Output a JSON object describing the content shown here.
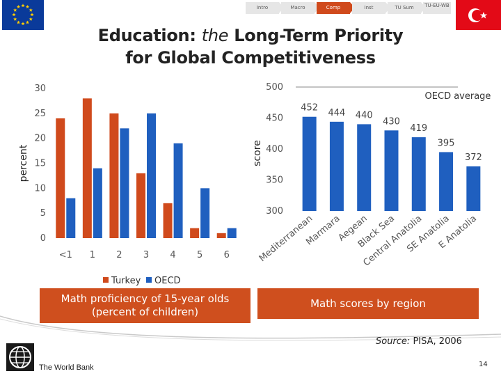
{
  "nav": {
    "tabs": [
      "Intro",
      "Macro",
      "Comp",
      "Inst",
      "TU Sum",
      "TU-EU-WB"
    ],
    "active_index": 2
  },
  "title": {
    "line1_pre": "Education:",
    "line1_em": "the",
    "line1_post": "Long-Term Priority",
    "line2": "for Global Competitiveness"
  },
  "chart_data": [
    {
      "type": "bar",
      "title": "",
      "xlabel": "",
      "ylabel": "percent",
      "ylim": [
        0,
        30
      ],
      "yticks": [
        "0",
        "5",
        "10",
        "15",
        "20",
        "25",
        "30"
      ],
      "categories": [
        "<1",
        "1",
        "2",
        "3",
        "4",
        "5",
        "6"
      ],
      "series": [
        {
          "name": "Turkey",
          "values": [
            24,
            28,
            25,
            13,
            7,
            2,
            1
          ],
          "color": "#d04a1c"
        },
        {
          "name": "OECD",
          "values": [
            8,
            14,
            22,
            25,
            19,
            10,
            2
          ],
          "color": "#1f5fbf"
        }
      ],
      "legend": "bottom"
    },
    {
      "type": "bar",
      "title": "",
      "xlabel": "",
      "ylabel": "score",
      "ylim": [
        300,
        500
      ],
      "yticks": [
        "300",
        "350",
        "400",
        "450",
        "500"
      ],
      "categories": [
        "Mediterranean",
        "Marmara",
        "Aegean",
        "Black Sea",
        "Central Anatolia",
        "SE Anatolia",
        "E Anatolia"
      ],
      "values": [
        452,
        444,
        440,
        430,
        419,
        395,
        372
      ],
      "data_labels": [
        "452",
        "444",
        "440",
        "430",
        "419",
        "395",
        "372"
      ],
      "color": "#1f5fbf",
      "annotation": {
        "label": "OECD average",
        "value": 500
      }
    }
  ],
  "captions": {
    "left": "Math proficiency of 15-year olds (percent of children)",
    "right": "Math scores by region"
  },
  "source": {
    "label": "Source:",
    "text": "PISA, 2006"
  },
  "footer": {
    "org": "The World Bank",
    "page": "14"
  },
  "colors": {
    "accent": "#cf4f1e",
    "blue": "#1f5fbf",
    "eu_blue": "#003399",
    "turkey_red": "#e30a17"
  }
}
